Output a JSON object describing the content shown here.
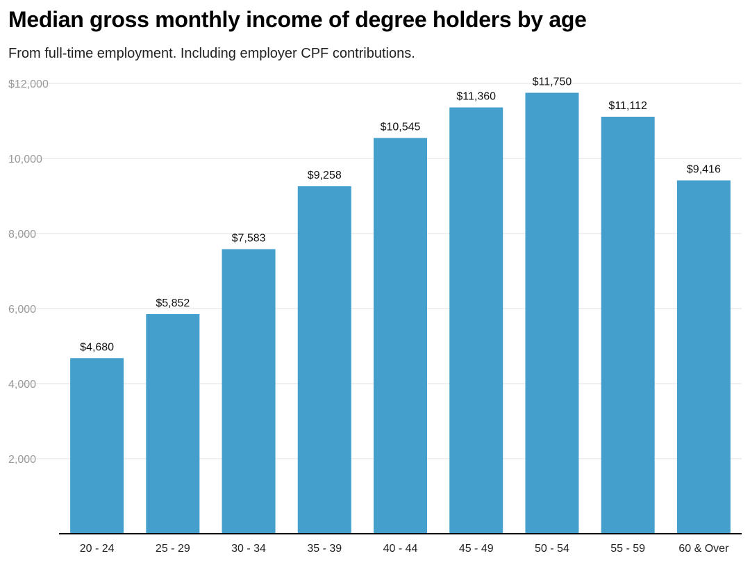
{
  "chart_data": {
    "type": "bar",
    "title": "Median gross monthly income of degree holders by age",
    "subtitle": "From full-time employment. Including employer CPF contributions.",
    "categories": [
      "20 - 24",
      "25 - 29",
      "30 - 34",
      "35 - 39",
      "40 - 44",
      "45 - 49",
      "50 - 54",
      "55 - 59",
      "60 & Over"
    ],
    "values": [
      4680,
      5852,
      7583,
      9258,
      10545,
      11360,
      11750,
      11112,
      9416
    ],
    "value_labels": [
      "$4,680",
      "$5,852",
      "$7,583",
      "$9,258",
      "$10,545",
      "$11,360",
      "$11,750",
      "$11,112",
      "$9,416"
    ],
    "y_ticks": [
      2000,
      4000,
      6000,
      8000,
      10000,
      12000
    ],
    "y_tick_labels": [
      "2,000",
      "4,000",
      "6,000",
      "8,000",
      "10,000",
      "$12,000"
    ],
    "xlabel": "",
    "ylabel": "",
    "ylim": [
      0,
      12000
    ],
    "grid": true,
    "bar_color": "#449fcc",
    "grid_color": "#e2e2e2",
    "axis_color": "#000000"
  }
}
